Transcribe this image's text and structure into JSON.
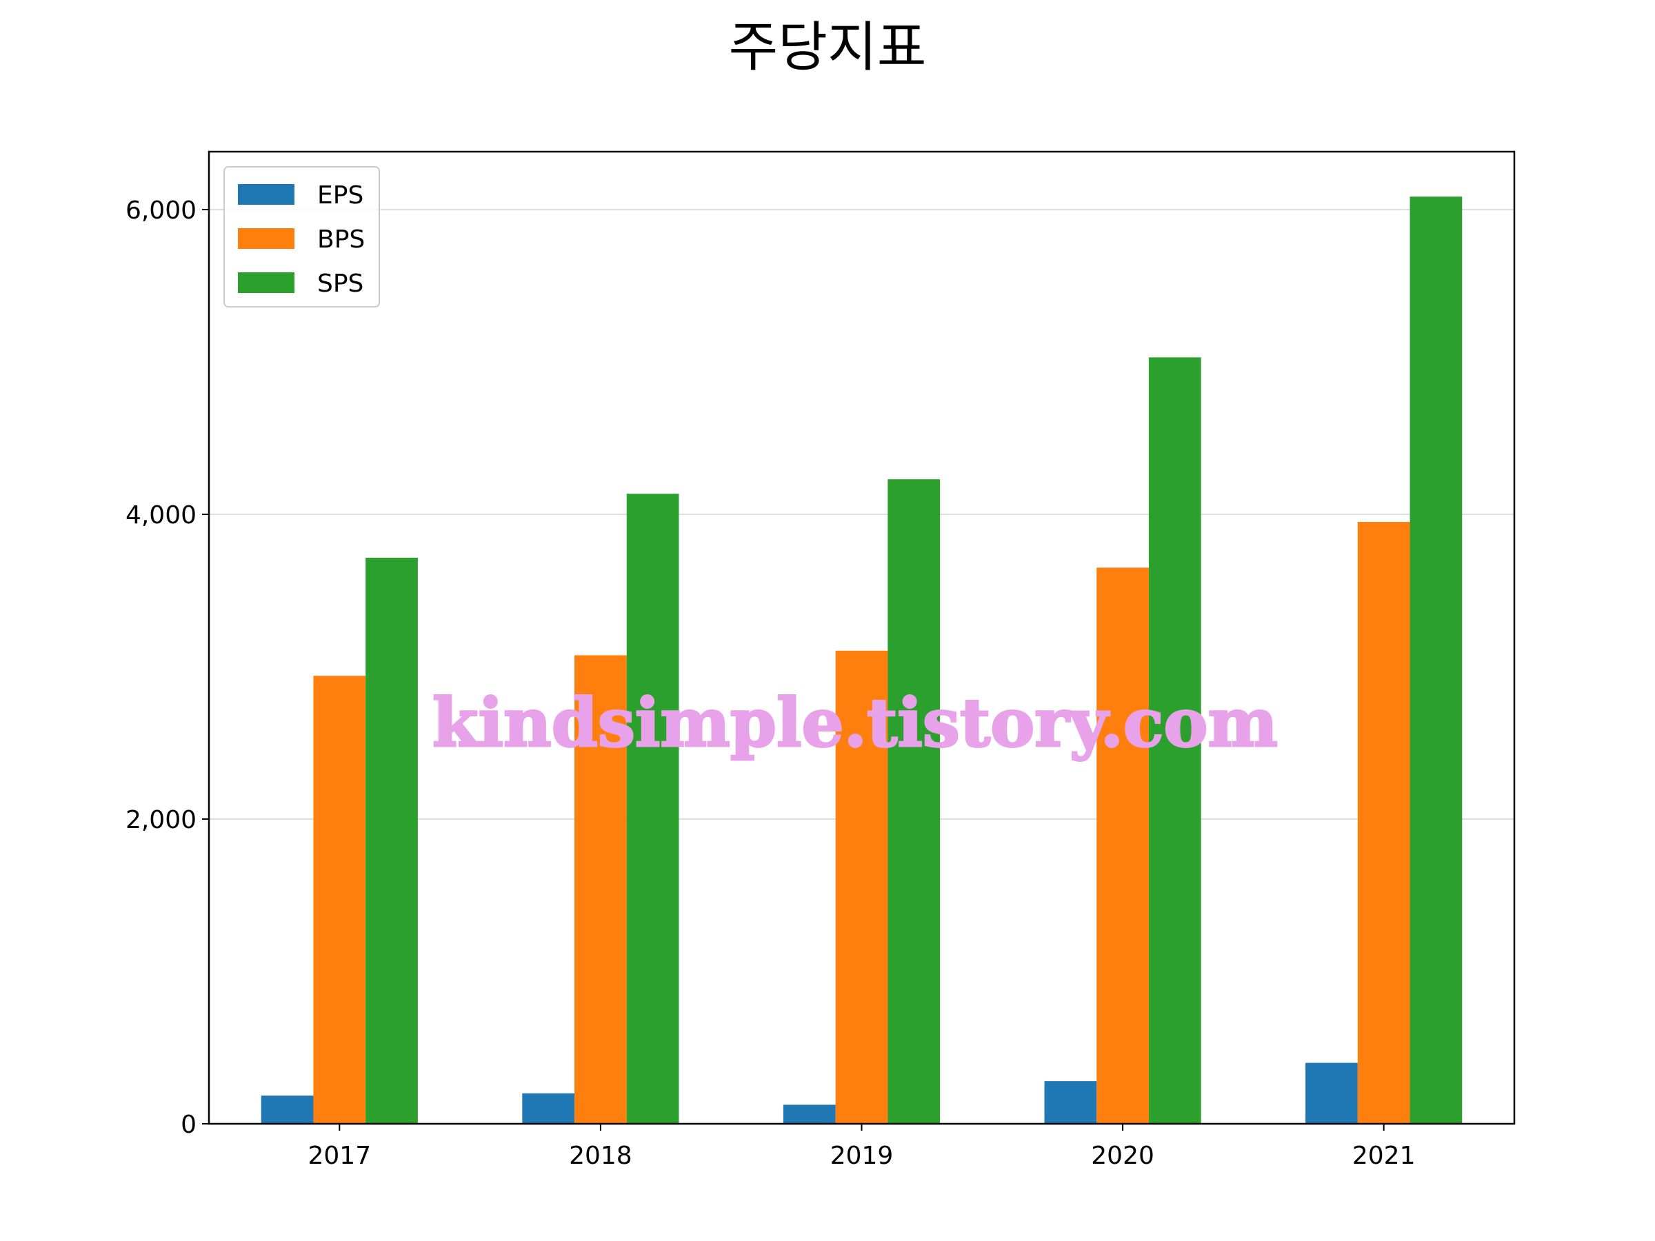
{
  "chart_data": {
    "type": "bar",
    "title": "주당지표",
    "xlabel": "",
    "ylabel": "",
    "categories": [
      "2017",
      "2018",
      "2019",
      "2020",
      "2021"
    ],
    "series": [
      {
        "name": "EPS",
        "color": "#1f77b4",
        "values": [
          185,
          200,
          125,
          280,
          400
        ]
      },
      {
        "name": "BPS",
        "color": "#ff7f0e",
        "values": [
          2940,
          3075,
          3105,
          3650,
          3950
        ]
      },
      {
        "name": "SPS",
        "color": "#2ca02c",
        "values": [
          3715,
          4135,
          4230,
          5030,
          6085
        ]
      }
    ],
    "ylim": [
      0,
      6380
    ],
    "yticks": [
      0,
      2000,
      4000,
      6000
    ],
    "ytick_labels": [
      "0",
      "2,000",
      "4,000",
      "6,000"
    ],
    "grid": "y",
    "legend_position": "top-left"
  },
  "watermark": "kindsimple.tistory.com"
}
